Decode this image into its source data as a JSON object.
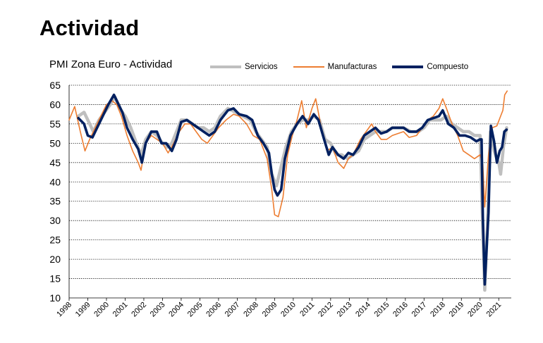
{
  "page": {
    "heading": "Actividad"
  },
  "chart_data": {
    "type": "line",
    "title": "PMI Zona Euro - Actividad",
    "xlabel": "",
    "ylabel": "",
    "ylim": [
      10,
      65
    ],
    "yticks": [
      10,
      15,
      20,
      25,
      30,
      35,
      40,
      45,
      50,
      55,
      60,
      65
    ],
    "xlim": [
      1998,
      2021.67
    ],
    "xticks": [
      1998,
      1999,
      2000,
      2001,
      2002,
      2003,
      2004,
      2005,
      2006,
      2007,
      2008,
      2009,
      2010,
      2011,
      2012,
      2013,
      2014,
      2015,
      2016,
      2017,
      2018,
      2019,
      2020,
      2021
    ],
    "xtick_labels": [
      "1998",
      "1999",
      "2000",
      "2001",
      "2002",
      "2003",
      "2004",
      "2005",
      "2006",
      "2007",
      "2008",
      "2009",
      "2010",
      "2011",
      "2012",
      "2013",
      "2014",
      "2015",
      "2016",
      "2017",
      "2018",
      "2019",
      "2020",
      "2021"
    ],
    "grid": "horizontal",
    "legend_position": "top-right",
    "series": [
      {
        "name": "Servicios",
        "color": "#bfbfbf",
        "points": [
          [
            1998.5,
            57
          ],
          [
            1998.8,
            58
          ],
          [
            1999.0,
            56
          ],
          [
            1999.3,
            53
          ],
          [
            1999.6,
            56
          ],
          [
            1999.9,
            58
          ],
          [
            2000.2,
            60
          ],
          [
            2000.45,
            62
          ],
          [
            2000.7,
            59
          ],
          [
            2001.0,
            57
          ],
          [
            2001.3,
            54
          ],
          [
            2001.6,
            50
          ],
          [
            2001.85,
            47
          ],
          [
            2002.1,
            51
          ],
          [
            2002.4,
            53
          ],
          [
            2002.7,
            52
          ],
          [
            2003.0,
            50
          ],
          [
            2003.25,
            49
          ],
          [
            2003.5,
            50
          ],
          [
            2003.75,
            53
          ],
          [
            2004.0,
            56
          ],
          [
            2004.3,
            56
          ],
          [
            2004.6,
            55
          ],
          [
            2004.9,
            54
          ],
          [
            2005.2,
            54
          ],
          [
            2005.5,
            53
          ],
          [
            2005.8,
            54
          ],
          [
            2006.1,
            57
          ],
          [
            2006.5,
            59
          ],
          [
            2006.9,
            58
          ],
          [
            2007.3,
            57
          ],
          [
            2007.7,
            56
          ],
          [
            2008.0,
            53
          ],
          [
            2008.3,
            51
          ],
          [
            2008.6,
            49
          ],
          [
            2008.85,
            42
          ],
          [
            2009.1,
            39
          ],
          [
            2009.35,
            44
          ],
          [
            2009.6,
            49
          ],
          [
            2009.9,
            53
          ],
          [
            2010.2,
            55
          ],
          [
            2010.5,
            56
          ],
          [
            2010.8,
            56
          ],
          [
            2011.1,
            57
          ],
          [
            2011.4,
            56
          ],
          [
            2011.7,
            51
          ],
          [
            2012.0,
            50
          ],
          [
            2012.3,
            47
          ],
          [
            2012.6,
            47
          ],
          [
            2012.9,
            46
          ],
          [
            2013.2,
            47
          ],
          [
            2013.5,
            48
          ],
          [
            2013.8,
            51
          ],
          [
            2014.1,
            52
          ],
          [
            2014.4,
            53
          ],
          [
            2014.7,
            53
          ],
          [
            2015.0,
            53
          ],
          [
            2015.3,
            54
          ],
          [
            2015.6,
            54
          ],
          [
            2015.9,
            54
          ],
          [
            2016.3,
            53
          ],
          [
            2016.7,
            53
          ],
          [
            2017.0,
            54
          ],
          [
            2017.3,
            56
          ],
          [
            2017.6,
            56
          ],
          [
            2017.9,
            56
          ],
          [
            2018.2,
            57
          ],
          [
            2018.5,
            55
          ],
          [
            2018.8,
            54
          ],
          [
            2019.1,
            53
          ],
          [
            2019.4,
            53
          ],
          [
            2019.7,
            52
          ],
          [
            2020.0,
            52
          ],
          [
            2020.15,
            27
          ],
          [
            2020.25,
            12
          ],
          [
            2020.4,
            30
          ],
          [
            2020.55,
            53
          ],
          [
            2020.75,
            48
          ],
          [
            2020.9,
            46
          ],
          [
            2021.0,
            45
          ],
          [
            2021.1,
            42
          ],
          [
            2021.25,
            49
          ],
          [
            2021.42,
            54
          ]
        ]
      },
      {
        "name": "Manufacturas",
        "color": "#ed7d31",
        "points": [
          [
            1998.0,
            56
          ],
          [
            1998.3,
            59.5
          ],
          [
            1998.6,
            53
          ],
          [
            1998.85,
            48
          ],
          [
            1999.1,
            51
          ],
          [
            1999.4,
            54
          ],
          [
            1999.7,
            57
          ],
          [
            2000.0,
            60
          ],
          [
            2000.3,
            61
          ],
          [
            2000.55,
            60
          ],
          [
            2000.8,
            57
          ],
          [
            2001.1,
            52
          ],
          [
            2001.4,
            48
          ],
          [
            2001.7,
            45
          ],
          [
            2001.85,
            43
          ],
          [
            2002.1,
            50
          ],
          [
            2002.4,
            52
          ],
          [
            2002.7,
            51
          ],
          [
            2003.0,
            50
          ],
          [
            2003.3,
            47.5
          ],
          [
            2003.6,
            50
          ],
          [
            2003.9,
            53
          ],
          [
            2004.2,
            55
          ],
          [
            2004.5,
            55
          ],
          [
            2004.8,
            53
          ],
          [
            2005.1,
            51
          ],
          [
            2005.4,
            50
          ],
          [
            2005.7,
            52
          ],
          [
            2006.0,
            54
          ],
          [
            2006.4,
            56
          ],
          [
            2006.8,
            57.5
          ],
          [
            2007.1,
            57
          ],
          [
            2007.5,
            55
          ],
          [
            2007.85,
            52
          ],
          [
            2008.2,
            51
          ],
          [
            2008.6,
            46
          ],
          [
            2008.85,
            38
          ],
          [
            2009.0,
            31.5
          ],
          [
            2009.2,
            31
          ],
          [
            2009.45,
            36
          ],
          [
            2009.7,
            47
          ],
          [
            2009.95,
            52
          ],
          [
            2010.2,
            56
          ],
          [
            2010.45,
            61
          ],
          [
            2010.7,
            54
          ],
          [
            2011.0,
            59
          ],
          [
            2011.2,
            61.5
          ],
          [
            2011.5,
            54
          ],
          [
            2011.8,
            48
          ],
          [
            2012.1,
            49
          ],
          [
            2012.4,
            45
          ],
          [
            2012.7,
            43.5
          ],
          [
            2012.95,
            46
          ],
          [
            2013.2,
            47
          ],
          [
            2013.6,
            51
          ],
          [
            2013.9,
            53
          ],
          [
            2014.2,
            55
          ],
          [
            2014.4,
            53
          ],
          [
            2014.7,
            51
          ],
          [
            2015.0,
            51
          ],
          [
            2015.3,
            52
          ],
          [
            2015.6,
            52.5
          ],
          [
            2015.9,
            53
          ],
          [
            2016.2,
            51.5
          ],
          [
            2016.6,
            52
          ],
          [
            2016.9,
            54
          ],
          [
            2017.2,
            56
          ],
          [
            2017.5,
            57
          ],
          [
            2017.8,
            59
          ],
          [
            2018.0,
            61.5
          ],
          [
            2018.2,
            59
          ],
          [
            2018.5,
            55
          ],
          [
            2018.8,
            52
          ],
          [
            2019.1,
            48
          ],
          [
            2019.4,
            47
          ],
          [
            2019.7,
            46
          ],
          [
            2020.0,
            47
          ],
          [
            2020.15,
            44.5
          ],
          [
            2020.25,
            33.5
          ],
          [
            2020.45,
            47
          ],
          [
            2020.65,
            54
          ],
          [
            2020.9,
            54.5
          ],
          [
            2021.1,
            57
          ],
          [
            2021.22,
            58.5
          ],
          [
            2021.32,
            62.5
          ],
          [
            2021.45,
            63.5
          ]
        ]
      },
      {
        "name": "Compuesto",
        "color": "#002060",
        "points": [
          [
            1998.5,
            56.5
          ],
          [
            1998.8,
            55
          ],
          [
            1999.0,
            52
          ],
          [
            1999.25,
            51.5
          ],
          [
            1999.5,
            54
          ],
          [
            1999.8,
            57
          ],
          [
            2000.1,
            60
          ],
          [
            2000.4,
            62.5
          ],
          [
            2000.6,
            60.5
          ],
          [
            2000.85,
            58
          ],
          [
            2001.1,
            54
          ],
          [
            2001.4,
            51
          ],
          [
            2001.7,
            48.5
          ],
          [
            2001.9,
            45
          ],
          [
            2002.1,
            50
          ],
          [
            2002.4,
            53
          ],
          [
            2002.7,
            53
          ],
          [
            2002.95,
            50
          ],
          [
            2003.2,
            50
          ],
          [
            2003.5,
            48
          ],
          [
            2003.75,
            51
          ],
          [
            2004.0,
            55.5
          ],
          [
            2004.3,
            56
          ],
          [
            2004.6,
            55
          ],
          [
            2004.9,
            54
          ],
          [
            2005.2,
            53
          ],
          [
            2005.5,
            52
          ],
          [
            2005.8,
            53
          ],
          [
            2006.1,
            56
          ],
          [
            2006.5,
            58.5
          ],
          [
            2006.8,
            59
          ],
          [
            2007.1,
            57.5
          ],
          [
            2007.5,
            57
          ],
          [
            2007.8,
            56
          ],
          [
            2008.1,
            52
          ],
          [
            2008.4,
            50
          ],
          [
            2008.7,
            47.5
          ],
          [
            2008.85,
            42
          ],
          [
            2009.0,
            38
          ],
          [
            2009.15,
            36.5
          ],
          [
            2009.35,
            38
          ],
          [
            2009.55,
            46
          ],
          [
            2009.85,
            52
          ],
          [
            2010.2,
            55
          ],
          [
            2010.5,
            57
          ],
          [
            2010.8,
            55
          ],
          [
            2011.1,
            57.5
          ],
          [
            2011.35,
            56
          ],
          [
            2011.65,
            51
          ],
          [
            2011.9,
            47
          ],
          [
            2012.1,
            49
          ],
          [
            2012.4,
            47
          ],
          [
            2012.7,
            46
          ],
          [
            2012.95,
            47.5
          ],
          [
            2013.2,
            47
          ],
          [
            2013.5,
            49
          ],
          [
            2013.8,
            52
          ],
          [
            2014.1,
            53
          ],
          [
            2014.4,
            54
          ],
          [
            2014.7,
            52.5
          ],
          [
            2015.0,
            53
          ],
          [
            2015.3,
            54
          ],
          [
            2015.6,
            54
          ],
          [
            2015.9,
            54
          ],
          [
            2016.2,
            53
          ],
          [
            2016.6,
            53
          ],
          [
            2016.9,
            54
          ],
          [
            2017.2,
            56
          ],
          [
            2017.5,
            56.5
          ],
          [
            2017.8,
            57
          ],
          [
            2018.0,
            58.5
          ],
          [
            2018.3,
            55
          ],
          [
            2018.6,
            54
          ],
          [
            2018.9,
            52
          ],
          [
            2019.2,
            52
          ],
          [
            2019.5,
            51.5
          ],
          [
            2019.8,
            50.5
          ],
          [
            2020.0,
            51
          ],
          [
            2020.08,
            51
          ],
          [
            2020.15,
            31
          ],
          [
            2020.25,
            13.5
          ],
          [
            2020.45,
            32
          ],
          [
            2020.58,
            54.5
          ],
          [
            2020.75,
            50.5
          ],
          [
            2020.9,
            45
          ],
          [
            2021.05,
            48
          ],
          [
            2021.18,
            49
          ],
          [
            2021.3,
            53
          ],
          [
            2021.42,
            53.5
          ]
        ]
      }
    ]
  }
}
